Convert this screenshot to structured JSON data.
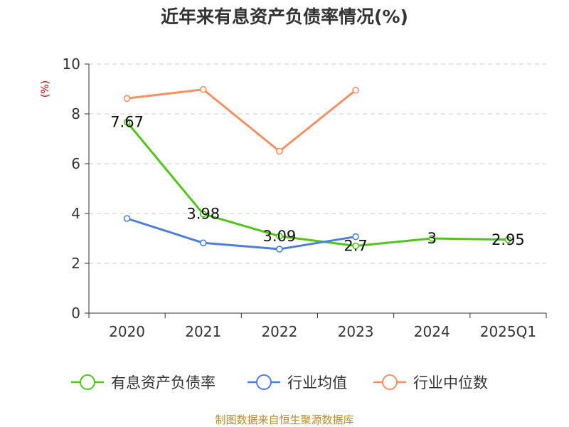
{
  "chart_data": {
    "type": "line",
    "title": "近年来有息资产负债率情况(%)",
    "ylabel": "(%)",
    "categories": [
      "2020",
      "2021",
      "2022",
      "2023",
      "2024",
      "2025Q1"
    ],
    "ylim": [
      0,
      10
    ],
    "yticks": [
      0,
      2,
      4,
      6,
      8,
      10
    ],
    "grid": true,
    "legend_position": "bottom",
    "series": [
      {
        "name": "有息资产负债率",
        "color": "#52c41a",
        "values": [
          7.67,
          3.98,
          3.09,
          2.7,
          3,
          2.95
        ],
        "labels": [
          "7.67",
          "3.98",
          "3.09",
          "2.7",
          "3",
          "2.95"
        ]
      },
      {
        "name": "行业均值",
        "color": "#4a7fdc",
        "values": [
          3.8,
          2.82,
          2.57,
          3.07,
          null,
          null
        ]
      },
      {
        "name": "行业中位数",
        "color": "#f79063",
        "values": [
          8.62,
          8.98,
          6.5,
          8.95,
          null,
          null
        ]
      }
    ]
  },
  "source": "制图数据来自恒生聚源数据库"
}
